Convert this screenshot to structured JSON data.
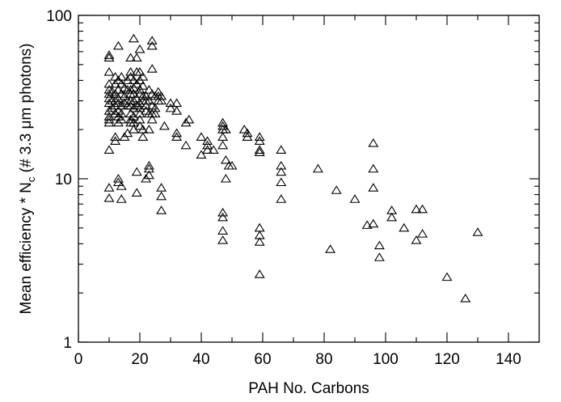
{
  "chart_data": {
    "type": "scatter",
    "title": "",
    "xlabel": "PAH No. Carbons",
    "ylabel_main": "Mean efficiency * N",
    "ylabel_sub": "c",
    "ylabel_tail": " (# 3.3 μm photons)",
    "xlim": [
      0,
      150
    ],
    "ylim": [
      1,
      100
    ],
    "yscale": "log",
    "grid": false,
    "marker": "open-triangle",
    "x_ticks": [
      {
        "value": 0,
        "label": "0"
      },
      {
        "value": 20,
        "label": "20"
      },
      {
        "value": 40,
        "label": "40"
      },
      {
        "value": 60,
        "label": "60"
      },
      {
        "value": 80,
        "label": "80"
      },
      {
        "value": 100,
        "label": "100"
      },
      {
        "value": 120,
        "label": "120"
      },
      {
        "value": 140,
        "label": "140"
      }
    ],
    "y_ticks": [
      {
        "value": 1,
        "label": "1"
      },
      {
        "value": 10,
        "label": "10"
      },
      {
        "value": 100,
        "label": "100"
      }
    ],
    "points": [
      [
        10,
        57
      ],
      [
        10,
        55
      ],
      [
        10,
        45
      ],
      [
        10,
        38
      ],
      [
        10,
        35
      ],
      [
        10,
        33
      ],
      [
        10,
        31
      ],
      [
        10,
        29
      ],
      [
        10,
        26
      ],
      [
        10,
        24
      ],
      [
        10,
        23
      ],
      [
        10,
        22
      ],
      [
        10,
        15
      ],
      [
        10,
        8.8
      ],
      [
        10,
        7.6
      ],
      [
        11,
        34
      ],
      [
        11,
        30
      ],
      [
        11,
        27
      ],
      [
        12,
        42
      ],
      [
        12,
        38
      ],
      [
        12,
        33
      ],
      [
        12,
        30
      ],
      [
        12,
        28
      ],
      [
        12,
        25
      ],
      [
        12,
        18
      ],
      [
        12,
        17
      ],
      [
        13,
        65
      ],
      [
        13,
        40
      ],
      [
        13,
        35
      ],
      [
        13,
        31
      ],
      [
        13,
        29
      ],
      [
        13,
        26
      ],
      [
        13,
        24
      ],
      [
        13,
        22
      ],
      [
        13,
        10
      ],
      [
        13,
        9.5
      ],
      [
        14,
        42
      ],
      [
        14,
        38
      ],
      [
        14,
        33
      ],
      [
        14,
        28
      ],
      [
        14,
        25
      ],
      [
        14,
        23
      ],
      [
        14,
        9.0
      ],
      [
        14,
        7.5
      ],
      [
        15,
        36
      ],
      [
        15,
        32
      ],
      [
        15,
        29
      ],
      [
        15,
        18
      ],
      [
        16,
        40
      ],
      [
        16,
        35
      ],
      [
        16,
        30
      ],
      [
        16,
        28
      ],
      [
        16,
        19
      ],
      [
        17,
        55
      ],
      [
        17,
        45
      ],
      [
        17,
        42
      ],
      [
        17,
        35
      ],
      [
        17,
        33
      ],
      [
        17,
        30
      ],
      [
        17,
        28
      ],
      [
        17,
        25
      ],
      [
        17,
        23
      ],
      [
        17,
        22
      ],
      [
        18,
        72
      ],
      [
        18,
        40
      ],
      [
        18,
        36
      ],
      [
        18,
        33
      ],
      [
        18,
        30
      ],
      [
        18,
        27
      ],
      [
        18,
        24
      ],
      [
        18,
        22
      ],
      [
        18,
        20
      ],
      [
        19,
        55
      ],
      [
        19,
        45
      ],
      [
        19,
        38
      ],
      [
        19,
        31
      ],
      [
        19,
        28
      ],
      [
        19,
        11
      ],
      [
        19,
        8.2
      ],
      [
        20,
        62
      ],
      [
        20,
        45
      ],
      [
        20,
        40
      ],
      [
        20,
        35
      ],
      [
        20,
        33
      ],
      [
        20,
        29
      ],
      [
        20,
        27
      ],
      [
        20,
        25
      ],
      [
        20,
        23
      ],
      [
        20,
        21
      ],
      [
        21,
        42
      ],
      [
        21,
        37
      ],
      [
        21,
        32
      ],
      [
        21,
        30
      ],
      [
        21,
        20
      ],
      [
        21,
        18
      ],
      [
        22,
        32
      ],
      [
        22,
        30
      ],
      [
        22,
        28
      ],
      [
        22,
        26
      ],
      [
        22,
        10
      ],
      [
        23,
        35
      ],
      [
        23,
        30
      ],
      [
        23,
        25
      ],
      [
        23,
        20
      ],
      [
        23,
        12
      ],
      [
        23,
        11.5
      ],
      [
        23,
        10.5
      ],
      [
        24,
        70
      ],
      [
        24,
        65
      ],
      [
        24,
        47
      ],
      [
        24,
        33
      ],
      [
        24,
        28
      ],
      [
        24,
        25
      ],
      [
        24,
        23
      ],
      [
        25,
        32
      ],
      [
        25,
        27
      ],
      [
        25,
        25
      ],
      [
        26,
        34
      ],
      [
        26,
        32
      ],
      [
        26,
        30
      ],
      [
        27,
        32
      ],
      [
        27,
        30
      ],
      [
        27,
        8.8
      ],
      [
        27,
        7.8
      ],
      [
        27,
        6.4
      ],
      [
        28,
        21
      ],
      [
        30,
        29
      ],
      [
        30,
        27
      ],
      [
        32,
        29
      ],
      [
        32,
        26
      ],
      [
        32,
        19
      ],
      [
        32,
        18
      ],
      [
        35,
        22
      ],
      [
        35,
        16
      ],
      [
        36,
        23
      ],
      [
        40,
        18
      ],
      [
        40,
        14
      ],
      [
        42,
        17
      ],
      [
        42,
        16
      ],
      [
        42,
        15
      ],
      [
        44,
        15
      ],
      [
        47,
        22
      ],
      [
        47,
        21
      ],
      [
        47,
        20
      ],
      [
        47,
        18
      ],
      [
        47,
        16
      ],
      [
        47,
        6.2
      ],
      [
        47,
        5.8
      ],
      [
        47,
        4.8
      ],
      [
        47,
        4.2
      ],
      [
        48,
        20
      ],
      [
        48,
        13
      ],
      [
        48,
        10
      ],
      [
        49,
        12
      ],
      [
        50,
        12
      ],
      [
        54,
        20
      ],
      [
        55,
        19
      ],
      [
        55,
        18
      ],
      [
        59,
        18
      ],
      [
        59,
        17
      ],
      [
        59,
        15
      ],
      [
        59,
        14.5
      ],
      [
        59,
        5.0
      ],
      [
        59,
        4.5
      ],
      [
        59,
        4.1
      ],
      [
        59,
        2.6
      ],
      [
        66,
        15
      ],
      [
        66,
        12
      ],
      [
        66,
        11
      ],
      [
        66,
        9.5
      ],
      [
        66,
        7.5
      ],
      [
        78,
        11.5
      ],
      [
        82,
        3.7
      ],
      [
        84,
        8.5
      ],
      [
        90,
        7.5
      ],
      [
        94,
        5.2
      ],
      [
        96,
        16.5
      ],
      [
        96,
        11.5
      ],
      [
        96,
        8.8
      ],
      [
        96,
        5.3
      ],
      [
        98,
        3.9
      ],
      [
        98,
        3.3
      ],
      [
        102,
        6.4
      ],
      [
        102,
        5.8
      ],
      [
        106,
        5.0
      ],
      [
        110,
        6.5
      ],
      [
        110,
        4.2
      ],
      [
        112,
        6.5
      ],
      [
        112,
        4.6
      ],
      [
        120,
        2.5
      ],
      [
        126,
        1.85
      ],
      [
        130,
        4.7
      ]
    ]
  }
}
